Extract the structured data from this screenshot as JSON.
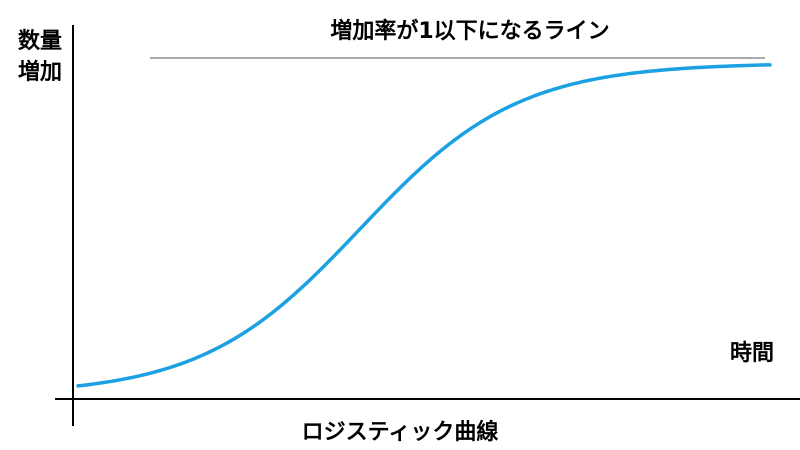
{
  "diagram": {
    "y_axis_label": [
      "数量",
      "増加"
    ],
    "x_axis_label": "時間",
    "annotation": "増加率が1以下になるライン",
    "caption": "ロジスティック曲線"
  }
}
